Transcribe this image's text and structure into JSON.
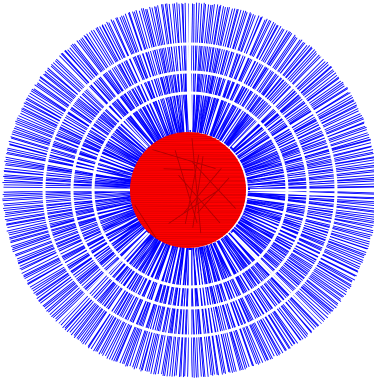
{
  "figure": {
    "background": "#ffffff",
    "outer_color": "#0000ff",
    "inner_color": "#ff0000",
    "grid_color": "#ffffff",
    "outer_line_count": 520,
    "inner_line_count": 55,
    "inner_chord_count": 12,
    "ring_count": 3,
    "spoke_count": 8
  }
}
